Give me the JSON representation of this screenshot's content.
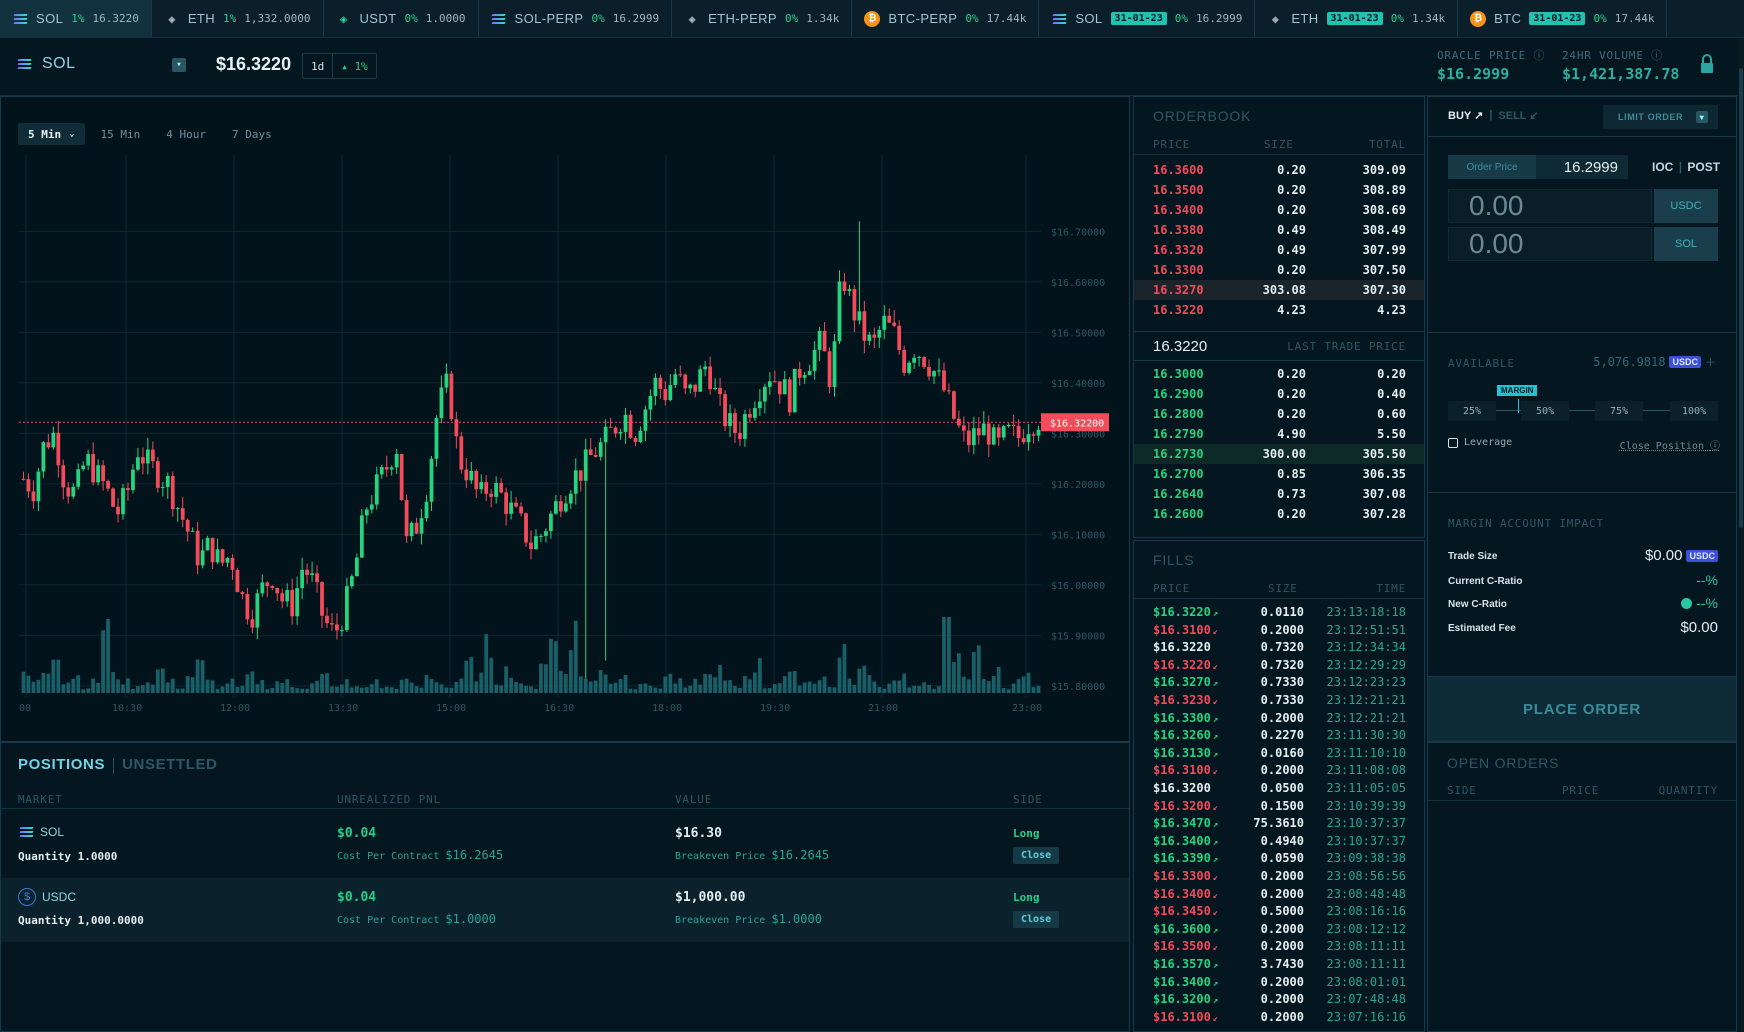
{
  "ticker": [
    {
      "icon": "sol-icon",
      "name": "SOL",
      "date": "",
      "change": "1%",
      "value": "16.3220",
      "active": true
    },
    {
      "icon": "eth-icon",
      "name": "ETH",
      "date": "",
      "change": "1%",
      "value": "1,332.0000",
      "active": false
    },
    {
      "icon": "usdt-icon",
      "name": "USDT",
      "date": "",
      "change": "0%",
      "value": "1.0000",
      "active": false
    },
    {
      "icon": "sol-icon",
      "name": "SOL-PERP",
      "date": "",
      "change": "0%",
      "value": "16.2999",
      "active": false
    },
    {
      "icon": "eth-icon",
      "name": "ETH-PERP",
      "date": "",
      "change": "0%",
      "value": "1.34k",
      "active": false
    },
    {
      "icon": "btc-icon",
      "name": "BTC-PERP",
      "date": "",
      "change": "0%",
      "value": "17.44k",
      "active": false
    },
    {
      "icon": "sol-icon",
      "name": "SOL",
      "date": "31-01-23",
      "change": "0%",
      "value": "16.2999",
      "active": false
    },
    {
      "icon": "eth-icon",
      "name": "ETH",
      "date": "31-01-23",
      "change": "0%",
      "value": "1.34k",
      "active": false
    },
    {
      "icon": "btc-icon",
      "name": "BTC",
      "date": "31-01-23",
      "change": "0%",
      "value": "17.44k",
      "active": false
    }
  ],
  "market": {
    "symbol": "SOL",
    "price": "$16.3220",
    "period": "1d",
    "change": "▴ 1%",
    "oracle_label": "ORACLE PRICE",
    "oracle_value": "$16.2999",
    "volume_label": "24HR VOLUME",
    "volume_value": "$1,421,387.78"
  },
  "chart": {
    "timeframes": [
      "5 Min",
      "15 Min",
      "4 Hour",
      "7 Days"
    ],
    "selected_timeframe": "5 Min",
    "last_price_label": "$16.32200"
  },
  "chart_data": {
    "type": "candlestick",
    "y_ticks": [
      "$16.70000",
      "$16.60000",
      "$16.50000",
      "$16.40000",
      "$16.30000",
      "$16.20000",
      "$16.10000",
      "$16.00000",
      "$15.90000",
      "$15.80000"
    ],
    "y_tick_values": [
      16.7,
      16.6,
      16.5,
      16.4,
      16.3,
      16.2,
      16.1,
      16.0,
      15.9,
      15.8
    ],
    "x_ticks": [
      "00",
      "10:30",
      "12:00",
      "13:30",
      "15:00",
      "16:30",
      "18:00",
      "19:30",
      "21:00",
      "23:00"
    ],
    "ylim": [
      15.77,
      16.78
    ],
    "last_price": 16.322,
    "close_path": [
      16.21,
      16.19,
      16.28,
      16.3,
      16.2,
      16.18,
      16.25,
      16.22,
      16.19,
      16.14,
      16.18,
      16.27,
      16.24,
      16.22,
      16.2,
      16.15,
      16.1,
      16.05,
      16.08,
      16.04,
      16.06,
      15.98,
      15.94,
      15.99,
      16.02,
      15.97,
      15.96,
      16.04,
      16.0,
      15.93,
      15.9,
      15.95,
      16.03,
      16.15,
      16.19,
      16.23,
      16.28,
      16.08,
      16.12,
      16.2,
      16.35,
      16.4,
      16.25,
      16.22,
      16.17,
      16.2,
      16.18,
      16.15,
      16.12,
      16.08,
      16.1,
      16.14,
      16.18,
      16.21,
      16.23,
      16.26,
      16.28,
      16.31,
      16.34,
      16.3,
      16.35,
      16.4,
      16.38,
      16.42,
      16.37,
      16.4,
      16.44,
      16.36,
      16.32,
      16.3,
      16.35,
      16.39,
      16.42,
      16.4,
      16.37,
      16.43,
      16.45,
      16.48,
      16.4,
      16.62,
      16.55,
      16.5,
      16.47,
      16.52,
      16.5,
      16.44,
      16.47,
      16.45,
      16.42,
      16.38,
      16.32,
      16.28,
      16.3,
      16.31,
      16.27,
      16.3,
      16.29,
      16.32,
      16.33
    ],
    "volume_path": [
      3,
      2,
      4,
      8,
      2,
      3,
      1,
      2,
      12,
      3,
      2,
      1,
      2,
      4,
      2,
      1,
      3,
      5,
      2,
      1,
      2,
      1,
      3,
      2,
      1,
      2,
      1,
      1,
      2,
      3,
      1,
      2,
      1,
      1,
      2,
      1,
      1,
      2,
      1,
      3,
      2,
      1,
      2,
      5,
      3,
      8,
      2,
      4,
      2,
      1,
      6,
      9,
      4,
      11,
      3,
      2,
      4,
      2,
      3,
      1,
      2,
      1,
      3,
      2,
      1,
      2,
      3,
      4,
      2,
      1,
      3,
      5,
      1,
      2,
      3,
      2,
      2,
      3,
      1,
      8,
      2,
      4,
      3,
      1,
      2,
      3,
      1,
      2,
      1,
      12,
      6,
      3,
      9,
      2,
      4,
      1,
      2,
      3,
      1
    ]
  },
  "positions": {
    "tab_active": "POSITIONS",
    "tab_inactive": "UNSETTLED",
    "columns": [
      "MARKET",
      "UNREALIZED PNL",
      "VALUE",
      "SIDE"
    ],
    "rows": [
      {
        "icon": "sol-icon",
        "market": "SOL",
        "quantity": "Quantity 1.0000",
        "pnl": "$0.04",
        "cost_label": "Cost Per Contract",
        "cost_value": "$16.2645",
        "value": "$16.30",
        "breakeven_label": "Breakeven Price",
        "breakeven_value": "$16.2645",
        "side": "Long",
        "close": "Close"
      },
      {
        "icon": "usdc-icon",
        "market": "USDC",
        "quantity": "Quantity 1,000.0000",
        "pnl": "$0.04",
        "cost_label": "Cost Per Contract",
        "cost_value": "$1.0000",
        "value": "$1,000.00",
        "breakeven_label": "Breakeven Price",
        "breakeven_value": "$1.0000",
        "side": "Long",
        "close": "Close"
      }
    ]
  },
  "orderbook": {
    "title": "ORDERBOOK",
    "columns": [
      "PRICE",
      "SIZE",
      "TOTAL"
    ],
    "asks": [
      {
        "price": "16.3600",
        "size": "0.20",
        "total": "309.09"
      },
      {
        "price": "16.3500",
        "size": "0.20",
        "total": "308.89"
      },
      {
        "price": "16.3400",
        "size": "0.20",
        "total": "308.69"
      },
      {
        "price": "16.3380",
        "size": "0.49",
        "total": "308.49"
      },
      {
        "price": "16.3320",
        "size": "0.49",
        "total": "307.99"
      },
      {
        "price": "16.3300",
        "size": "0.20",
        "total": "307.50"
      },
      {
        "price": "16.3270",
        "size": "303.08",
        "total": "307.30"
      },
      {
        "price": "16.3220",
        "size": "4.23",
        "total": "4.23"
      }
    ],
    "ask_highlight": 6,
    "last_trade_price": "16.3220",
    "last_trade_label": "LAST TRADE PRICE",
    "bids": [
      {
        "price": "16.3000",
        "size": "0.20",
        "total": "0.20"
      },
      {
        "price": "16.2900",
        "size": "0.20",
        "total": "0.40"
      },
      {
        "price": "16.2800",
        "size": "0.20",
        "total": "0.60"
      },
      {
        "price": "16.2790",
        "size": "4.90",
        "total": "5.50"
      },
      {
        "price": "16.2730",
        "size": "300.00",
        "total": "305.50"
      },
      {
        "price": "16.2700",
        "size": "0.85",
        "total": "306.35"
      },
      {
        "price": "16.2640",
        "size": "0.73",
        "total": "307.08"
      },
      {
        "price": "16.2600",
        "size": "0.20",
        "total": "307.28"
      }
    ],
    "bid_highlight": 4
  },
  "fills": {
    "title": "FILLS",
    "columns": [
      "PRICE",
      "SIZE",
      "TIME"
    ],
    "rows": [
      {
        "price": "$16.3220",
        "dir": "up",
        "size": "0.0110",
        "time": "23:13:18:18"
      },
      {
        "price": "$16.3100",
        "dir": "down",
        "size": "0.2000",
        "time": "23:12:51:51"
      },
      {
        "price": "$16.3220",
        "dir": "none",
        "size": "0.7320",
        "time": "23:12:34:34"
      },
      {
        "price": "$16.3220",
        "dir": "down",
        "size": "0.7320",
        "time": "23:12:29:29"
      },
      {
        "price": "$16.3270",
        "dir": "up",
        "size": "0.7330",
        "time": "23:12:23:23"
      },
      {
        "price": "$16.3230",
        "dir": "down",
        "size": "0.7330",
        "time": "23:12:21:21"
      },
      {
        "price": "$16.3300",
        "dir": "up",
        "size": "0.2000",
        "time": "23:12:21:21"
      },
      {
        "price": "$16.3260",
        "dir": "up",
        "size": "0.2270",
        "time": "23:11:30:30"
      },
      {
        "price": "$16.3130",
        "dir": "up",
        "size": "0.0160",
        "time": "23:11:10:10"
      },
      {
        "price": "$16.3100",
        "dir": "down",
        "size": "0.2000",
        "time": "23:11:08:08"
      },
      {
        "price": "$16.3200",
        "dir": "none",
        "size": "0.0500",
        "time": "23:11:05:05"
      },
      {
        "price": "$16.3200",
        "dir": "down",
        "size": "0.1500",
        "time": "23:10:39:39"
      },
      {
        "price": "$16.3470",
        "dir": "up",
        "size": "75.3610",
        "time": "23:10:37:37"
      },
      {
        "price": "$16.3400",
        "dir": "up",
        "size": "0.4940",
        "time": "23:10:37:37"
      },
      {
        "price": "$16.3390",
        "dir": "up",
        "size": "0.0590",
        "time": "23:09:38:38"
      },
      {
        "price": "$16.3300",
        "dir": "down",
        "size": "0.2000",
        "time": "23:08:56:56"
      },
      {
        "price": "$16.3400",
        "dir": "down",
        "size": "0.2000",
        "time": "23:08:48:48"
      },
      {
        "price": "$16.3450",
        "dir": "down",
        "size": "0.5000",
        "time": "23:08:16:16"
      },
      {
        "price": "$16.3600",
        "dir": "up",
        "size": "0.2000",
        "time": "23:08:12:12"
      },
      {
        "price": "$16.3500",
        "dir": "down",
        "size": "0.2000",
        "time": "23:08:11:11"
      },
      {
        "price": "$16.3570",
        "dir": "up",
        "size": "3.7430",
        "time": "23:08:11:11"
      },
      {
        "price": "$16.3400",
        "dir": "up",
        "size": "0.2000",
        "time": "23:08:01:01"
      },
      {
        "price": "$16.3200",
        "dir": "up",
        "size": "0.2000",
        "time": "23:07:48:48"
      },
      {
        "price": "$16.3100",
        "dir": "down",
        "size": "0.2000",
        "time": "23:07:16:16"
      }
    ]
  },
  "orderform": {
    "buy": "BUY",
    "sell": "SELL",
    "order_type": "LIMIT ORDER",
    "order_price_label": "Order Price",
    "order_price": "16.2999",
    "ioc": "IOC",
    "post": "POST",
    "amount_usdc": "0.00",
    "amount_sol": "0.00",
    "usdc": "USDC",
    "sol": "SOL",
    "available_label": "AVAILABLE",
    "available_value": "5,076.9818",
    "margin_tag": "MARGIN",
    "slider": [
      "25%",
      "50%",
      "75%",
      "100%"
    ],
    "leverage": "Leverage",
    "close_position": "Close Position",
    "impact_title": "MARGIN ACCOUNT IMPACT",
    "trade_size_label": "Trade Size",
    "trade_size": "$0.00",
    "current_cratio_label": "Current C-Ratio",
    "current_cratio": "--%",
    "new_cratio_label": "New C-Ratio",
    "new_cratio": "--%",
    "fee_label": "Estimated Fee",
    "fee": "$0.00",
    "place_order": "PLACE ORDER"
  },
  "open_orders": {
    "title": "OPEN ORDERS",
    "columns": [
      "SIDE",
      "PRICE",
      "QUANTITY"
    ]
  },
  "colors": {
    "up": "#26d37e",
    "down": "#f44b5b",
    "accent": "#1fc3b0",
    "bg": "#04161f"
  }
}
